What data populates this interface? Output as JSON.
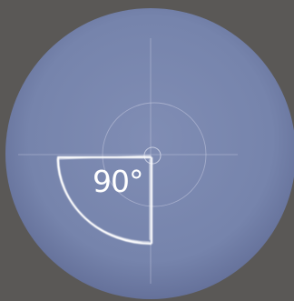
{
  "gizmo": {
    "angle_label": "90°",
    "rotation_degrees": 90,
    "colors": {
      "background": "#5a5856",
      "sphere_center": "#7d8bb3",
      "sphere_edge": "#4f5b82",
      "guide_lines": "#c8cce0",
      "arc": "#ffffff",
      "text": "#ffffff"
    }
  }
}
